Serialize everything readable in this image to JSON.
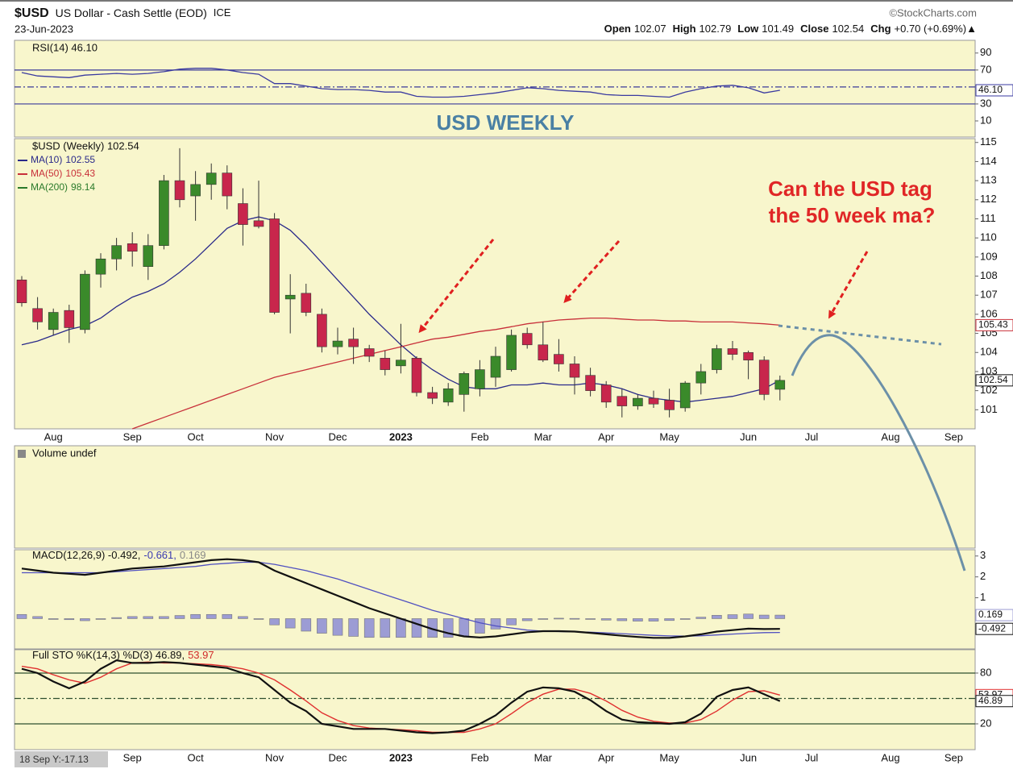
{
  "header": {
    "symbol": "$USD",
    "name": "US Dollar - Cash Settle (EOD)",
    "exchange": "ICE",
    "date": "23-Jun-2023",
    "source": "©StockCharts.com",
    "quote": [
      {
        "label": "Open",
        "value": "102.07"
      },
      {
        "label": "High",
        "value": "102.79"
      },
      {
        "label": "Low",
        "value": "101.49"
      },
      {
        "label": "Close",
        "value": "102.54"
      },
      {
        "label": "Chg",
        "value": "+0.70 (+0.69%)▲"
      }
    ]
  },
  "annotations": {
    "panel_label": "USD WEEKLY",
    "question_line1": "Can the USD tag",
    "question_line2": "the 50 week ma?",
    "cursor_label": "18 Sep Y:-17.13"
  },
  "chart_data": [
    {
      "type": "line",
      "title": "RSI(14) 46.10",
      "ylim": [
        -9,
        105
      ],
      "yticks": [
        10,
        30,
        70,
        90
      ],
      "hline_color": "#3a3a9a",
      "hlines": [
        {
          "value": 30,
          "style": "solid"
        },
        {
          "value": 50,
          "style": "dashdot"
        },
        {
          "value": 70,
          "style": "solid"
        }
      ],
      "series": [
        {
          "color": "#3a3aa0",
          "last_label": "46.10",
          "values": [
            67,
            63,
            62,
            61,
            64,
            65,
            66,
            65,
            66,
            68,
            71,
            72,
            72,
            70,
            67,
            65,
            54,
            54,
            51,
            48,
            47,
            47,
            46,
            44,
            44,
            39,
            38,
            38,
            39,
            41,
            43,
            46,
            49,
            48,
            46,
            45,
            44,
            41,
            40,
            40,
            39,
            38,
            44,
            48,
            51,
            52,
            49,
            43,
            46.1
          ]
        }
      ]
    },
    {
      "type": "candlestick",
      "title": "$USD (Weekly) 102.54",
      "categories": [
        null,
        null,
        "Aug",
        null,
        null,
        null,
        null,
        "Sep",
        null,
        null,
        null,
        "Oct",
        null,
        null,
        null,
        null,
        "Nov",
        null,
        null,
        null,
        "Dec",
        null,
        null,
        null,
        "2023",
        null,
        null,
        null,
        null,
        "Feb",
        null,
        null,
        null,
        "Mar",
        null,
        null,
        null,
        "Apr",
        null,
        null,
        null,
        "May",
        null,
        null,
        null,
        null,
        "Jun",
        null,
        null,
        null,
        "Jul",
        null,
        null,
        null,
        null,
        "Aug",
        null,
        null,
        null,
        "Sep"
      ],
      "up_color": "#3a8a2a",
      "down_color": "#c8264c",
      "close_label": "102.54",
      "ylim": [
        100,
        115.2
      ],
      "yticks": [
        101,
        102,
        103,
        104,
        105,
        106,
        107,
        108,
        109,
        110,
        111,
        112,
        113,
        114,
        115
      ],
      "open": [
        107.8,
        106.3,
        105.2,
        106.2,
        105.2,
        108.1,
        108.9,
        109.7,
        108.5,
        109.6,
        113,
        112.2,
        112.8,
        113.4,
        111.8,
        110.9,
        111,
        106.8,
        107.1,
        106,
        104.3,
        104.7,
        104.2,
        103.7,
        103.3,
        103.7,
        101.9,
        101.4,
        101.8,
        102.1,
        102.7,
        103.1,
        105,
        104.4,
        103.9,
        103.4,
        102.8,
        102.3,
        101.7,
        101.2,
        101.6,
        101.5,
        101.1,
        102.4,
        103.1,
        104.2,
        104,
        103.6,
        102.07,
        null,
        null,
        null,
        null,
        null,
        null,
        null,
        null,
        null,
        null,
        null
      ],
      "high": [
        108,
        106.9,
        106.3,
        106.5,
        108.3,
        109.2,
        110,
        110.3,
        110.2,
        113.3,
        114.7,
        113.5,
        113.9,
        113.8,
        112.6,
        113,
        111.3,
        108.1,
        107.6,
        106.3,
        105.3,
        105.3,
        104.4,
        104.1,
        105.5,
        103.8,
        102.2,
        102.4,
        103,
        103.6,
        104.3,
        105.2,
        105.3,
        105.6,
        104.7,
        103.8,
        103.2,
        102.5,
        102.1,
        101.8,
        102,
        102.1,
        102.5,
        103.4,
        104.4,
        104.6,
        104.1,
        103.8,
        102.79,
        null,
        null,
        null,
        null,
        null,
        null,
        null,
        null,
        null,
        null,
        null
      ],
      "low": [
        106.4,
        105.2,
        104.9,
        104.5,
        105,
        107.4,
        108.3,
        108.5,
        107.8,
        109.4,
        111.6,
        110.9,
        112,
        111.5,
        109.6,
        110.5,
        106,
        105,
        105.9,
        104,
        103.9,
        103.4,
        103.5,
        102.8,
        102.9,
        101.7,
        101.3,
        101.2,
        100.9,
        101.7,
        102.2,
        103,
        104.2,
        103.5,
        103,
        101.8,
        101.7,
        101.1,
        100.6,
        101,
        101.1,
        100.6,
        100.9,
        101.8,
        102.9,
        103.6,
        102.6,
        101.5,
        101.49,
        null,
        null,
        null,
        null,
        null,
        null,
        null,
        null,
        null,
        null,
        null
      ],
      "close": [
        106.6,
        105.6,
        106.1,
        105.3,
        108.1,
        108.9,
        109.6,
        109.3,
        109.6,
        113,
        112,
        112.8,
        113.4,
        112.2,
        110.7,
        110.6,
        106.1,
        107,
        106.1,
        104.3,
        104.6,
        104.3,
        103.8,
        103.1,
        103.6,
        101.9,
        101.6,
        102.1,
        102.9,
        103.1,
        103.8,
        104.9,
        104.4,
        103.6,
        103.4,
        102.7,
        102,
        101.4,
        101.2,
        101.6,
        101.3,
        101,
        102.4,
        103,
        104.2,
        103.9,
        103.6,
        101.8,
        102.54,
        null,
        null,
        null,
        null,
        null,
        null,
        null,
        null,
        null,
        null,
        null
      ],
      "series": [
        {
          "name": "MA(10)",
          "legend_value": "102.55",
          "color": "#2a2a8a",
          "values": [
            104.4,
            104.6,
            104.9,
            105.2,
            105.4,
            105.8,
            106.4,
            106.9,
            107.2,
            107.6,
            108.2,
            108.9,
            109.7,
            110.5,
            110.9,
            111.1,
            110.9,
            110.4,
            109.6,
            108.7,
            107.8,
            106.9,
            106,
            105.2,
            104.4,
            103.7,
            103.1,
            102.6,
            102.2,
            102.1,
            102.1,
            102.3,
            102.3,
            102.4,
            102.3,
            102.3,
            102.4,
            102.3,
            102.1,
            101.8,
            101.6,
            101.5,
            101.4,
            101.5,
            101.6,
            101.7,
            101.9,
            102.1,
            102.55,
            null,
            null,
            null,
            null,
            null,
            null,
            null,
            null,
            null,
            null,
            null
          ]
        },
        {
          "name": "MA(50)",
          "legend_value": "105.43",
          "last_label": "105.43",
          "color": "#c8303a",
          "values": [
            null,
            null,
            null,
            null,
            null,
            null,
            null,
            100,
            100.3,
            100.6,
            100.9,
            101.2,
            101.5,
            101.8,
            102.1,
            102.4,
            102.7,
            102.9,
            103.1,
            103.3,
            103.5,
            103.7,
            103.9,
            104.1,
            104.3,
            104.5,
            104.7,
            104.8,
            104.95,
            105.1,
            105.2,
            105.35,
            105.5,
            105.6,
            105.7,
            105.75,
            105.8,
            105.8,
            105.75,
            105.7,
            105.7,
            105.65,
            105.65,
            105.6,
            105.6,
            105.6,
            105.55,
            105.5,
            105.43,
            null,
            null,
            null,
            null,
            null,
            null,
            null,
            null,
            null,
            null,
            null
          ]
        },
        {
          "name": "MA(200)",
          "legend_value": "98.14",
          "color": "#2a7a2a"
        }
      ]
    },
    {
      "type": "volume",
      "title": "Volume undef"
    },
    {
      "type": "macd",
      "title_parts": [
        {
          "text": "MACD(12,26,9) -0.492,",
          "color": "#111111"
        },
        {
          "text": "-0.661,",
          "color": "#3a3ab0"
        },
        {
          "text": "0.169",
          "color": "#888888"
        }
      ],
      "ylim": [
        -1.45,
        3.3
      ],
      "yticks": [
        1,
        2,
        3
      ],
      "series": [
        {
          "kind": "histogram",
          "color": "#9c9cd4",
          "last_label": "0.169",
          "values": [
            0.2,
            0.1,
            0,
            -0.05,
            -0.1,
            0,
            0.05,
            0.1,
            0.1,
            0.1,
            0.15,
            0.2,
            0.2,
            0.2,
            0.1,
            0,
            -0.3,
            -0.45,
            -0.6,
            -0.7,
            -0.8,
            -0.85,
            -0.9,
            -0.9,
            -0.9,
            -0.9,
            -0.9,
            -0.9,
            -0.85,
            -0.7,
            -0.5,
            -0.3,
            -0.1,
            0,
            0.02,
            0.01,
            -0.03,
            -0.07,
            -0.1,
            -0.12,
            -0.12,
            -0.09,
            -0.01,
            0.07,
            0.16,
            0.19,
            0.22,
            0.17,
            0.169
          ]
        },
        {
          "kind": "line",
          "color": "#5050c0",
          "width": 1.3,
          "values": [
            2.2,
            2.2,
            2.2,
            2.2,
            2.2,
            2.2,
            2.25,
            2.3,
            2.35,
            2.4,
            2.45,
            2.5,
            2.6,
            2.65,
            2.7,
            2.7,
            2.6,
            2.45,
            2.3,
            2.1,
            1.9,
            1.65,
            1.4,
            1.15,
            0.9,
            0.65,
            0.4,
            0.2,
            0,
            -0.2,
            -0.35,
            -0.45,
            -0.55,
            -0.6,
            -0.62,
            -0.63,
            -0.65,
            -0.68,
            -0.72,
            -0.76,
            -0.8,
            -0.83,
            -0.84,
            -0.82,
            -0.78,
            -0.74,
            -0.7,
            -0.67,
            -0.661
          ]
        },
        {
          "kind": "line",
          "color": "#111111",
          "width": 2.2,
          "last_label": "-0.492",
          "values": [
            2.4,
            2.3,
            2.2,
            2.15,
            2.1,
            2.2,
            2.3,
            2.4,
            2.45,
            2.5,
            2.6,
            2.7,
            2.8,
            2.85,
            2.8,
            2.7,
            2.3,
            2,
            1.7,
            1.4,
            1.1,
            0.8,
            0.5,
            0.25,
            0,
            -0.25,
            -0.5,
            -0.7,
            -0.85,
            -0.9,
            -0.85,
            -0.75,
            -0.65,
            -0.6,
            -0.6,
            -0.62,
            -0.68,
            -0.75,
            -0.82,
            -0.88,
            -0.92,
            -0.92,
            -0.85,
            -0.75,
            -0.62,
            -0.55,
            -0.48,
            -0.5,
            -0.492
          ]
        }
      ]
    },
    {
      "type": "line",
      "title_parts": [
        {
          "text": "Full STO %K(14,3) %D(3) 46.89,",
          "color": "#111111"
        },
        {
          "text": "53.97",
          "color": "#d02a2a"
        }
      ],
      "categories": [
        null,
        null,
        null,
        null,
        null,
        null,
        null,
        "Sep",
        null,
        null,
        null,
        "Oct",
        null,
        null,
        null,
        null,
        "Nov",
        null,
        null,
        null,
        "Dec",
        null,
        null,
        null,
        "2023",
        null,
        null,
        null,
        null,
        "Feb",
        null,
        null,
        null,
        "Mar",
        null,
        null,
        null,
        "Apr",
        null,
        null,
        null,
        "May",
        null,
        null,
        null,
        null,
        "Jun",
        null,
        null,
        null,
        "Jul",
        null,
        null,
        null,
        null,
        "Aug",
        null,
        null,
        null,
        "Sep"
      ],
      "ylim": [
        -10.5,
        107.6
      ],
      "yticks": [
        20,
        80
      ],
      "hline_color": "#2f4f2f",
      "hlines": [
        {
          "value": 20,
          "style": "solid"
        },
        {
          "value": 50,
          "style": "dashdot"
        },
        {
          "value": 80,
          "style": "solid"
        }
      ],
      "series": [
        {
          "color": "#e03030",
          "width": 1.4,
          "last_label": "53.97",
          "values": [
            88,
            85,
            78,
            72,
            68,
            75,
            85,
            92,
            93,
            92,
            92,
            91,
            90,
            88,
            85,
            80,
            72,
            60,
            47,
            33,
            24,
            18,
            15,
            14,
            13,
            12,
            10,
            10,
            10,
            14,
            20,
            32,
            45,
            55,
            61,
            61,
            56,
            47,
            36,
            28,
            23,
            21,
            21,
            25,
            35,
            48,
            58,
            59,
            53.97,
            null,
            null,
            null,
            null,
            null,
            null,
            null,
            null,
            null,
            null,
            null
          ]
        },
        {
          "color": "#111111",
          "width": 2.2,
          "last_label": "46.89",
          "values": [
            85,
            80,
            70,
            62,
            70,
            85,
            95,
            92,
            92,
            93,
            92,
            90,
            88,
            86,
            80,
            75,
            60,
            45,
            35,
            20,
            17,
            14,
            14,
            14,
            12,
            10,
            9,
            10,
            12,
            20,
            30,
            45,
            58,
            63,
            62,
            58,
            48,
            35,
            25,
            22,
            21,
            20,
            22,
            32,
            52,
            60,
            63,
            55,
            46.89,
            null,
            null,
            null,
            null,
            null,
            null,
            null,
            null,
            null,
            null,
            null
          ]
        }
      ]
    }
  ]
}
